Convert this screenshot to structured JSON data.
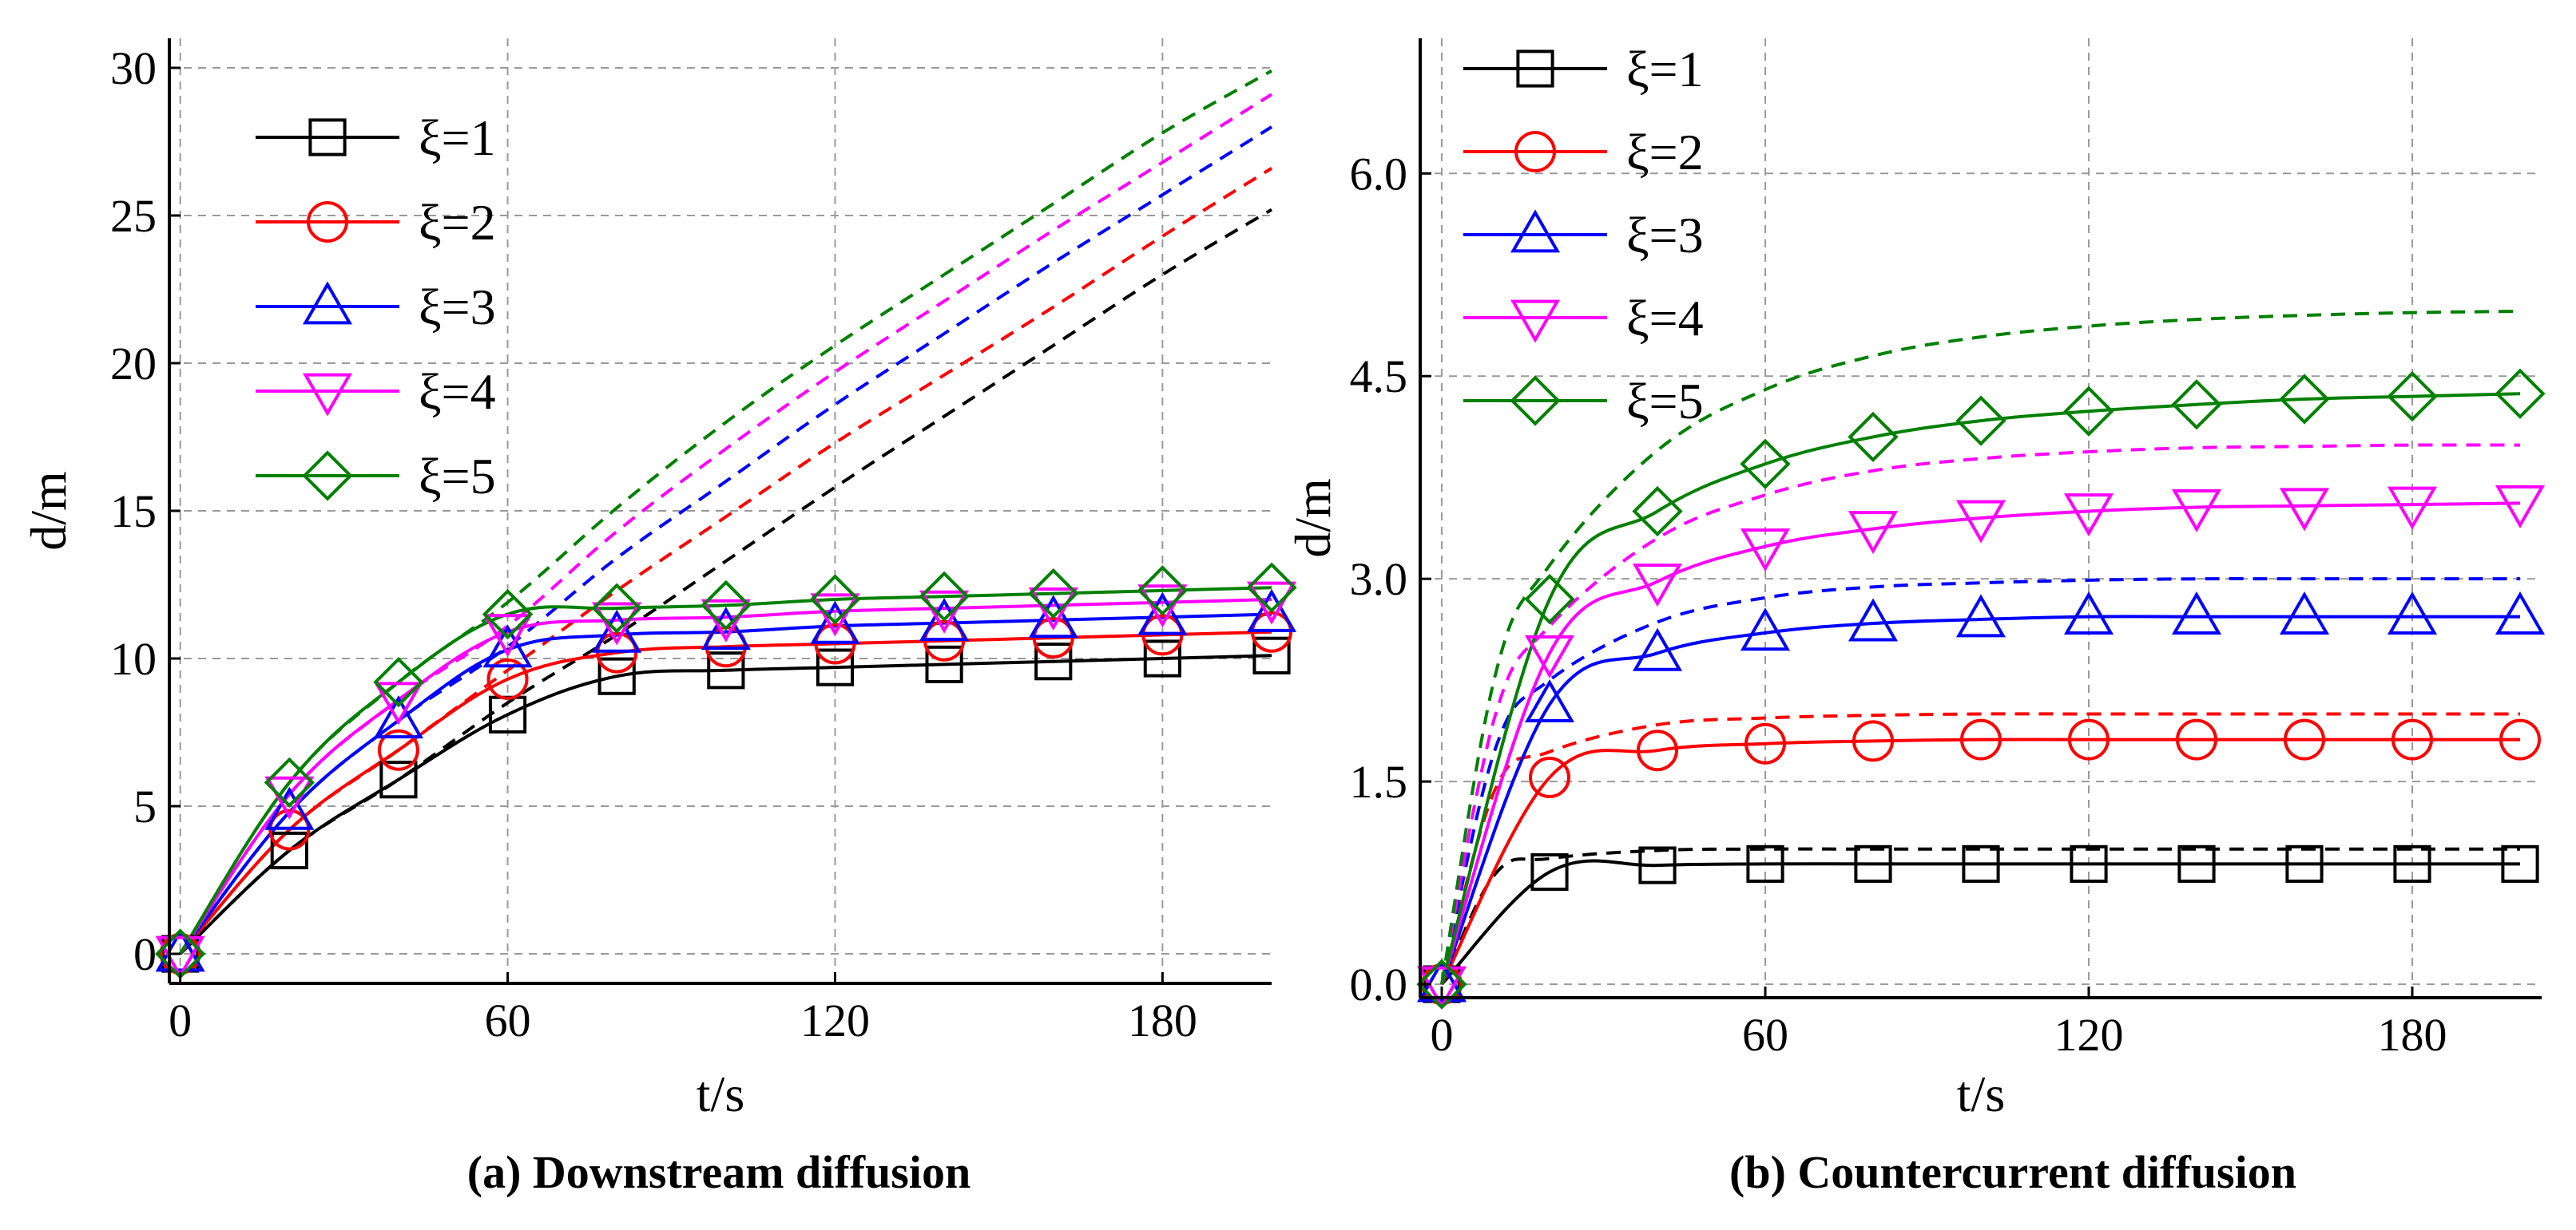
{
  "chart_data": [
    {
      "id": "a",
      "type": "line",
      "title": "(a) Downstream diffusion",
      "xlabel": "t/s",
      "ylabel": "d/m",
      "xlim": [
        -2,
        200
      ],
      "ylim": [
        -1,
        31
      ],
      "xticks": [
        0,
        60,
        120,
        180
      ],
      "yticks": [
        0,
        5,
        10,
        15,
        20,
        25,
        30
      ],
      "xtick_labels": [
        "0",
        "60",
        "120",
        "180"
      ],
      "ytick_labels": [
        "0",
        "5",
        "10",
        "15",
        "20",
        "25",
        "30"
      ],
      "grid": true,
      "legend_position": "top-left",
      "series": [
        {
          "name": "ξ=1",
          "color": "#000000",
          "marker": "square",
          "x": [
            0,
            20,
            40,
            60,
            80,
            100,
            120,
            140,
            160,
            180,
            200
          ],
          "solid": [
            0,
            3.5,
            5.9,
            8.1,
            9.4,
            9.6,
            9.7,
            9.8,
            9.9,
            10.0,
            10.1
          ],
          "dashed_x": [
            0,
            20,
            40,
            60,
            80,
            100,
            120,
            140,
            160,
            180,
            200
          ],
          "dashed": [
            0,
            3.5,
            5.9,
            8.5,
            10.8,
            13.3,
            15.8,
            18.2,
            20.6,
            23.0,
            25.2
          ]
        },
        {
          "name": "ξ=2",
          "color": "#ff0000",
          "marker": "circle",
          "x": [
            0,
            20,
            40,
            60,
            80,
            100,
            120,
            140,
            160,
            180,
            200
          ],
          "solid": [
            0,
            4.2,
            6.9,
            9.3,
            10.2,
            10.4,
            10.5,
            10.6,
            10.7,
            10.8,
            10.9
          ],
          "dashed_x": [
            0,
            20,
            40,
            60,
            80,
            100,
            120,
            140,
            160,
            180,
            200
          ],
          "dashed": [
            0,
            4.2,
            6.9,
            9.6,
            12.3,
            14.8,
            17.3,
            19.6,
            21.9,
            24.3,
            26.6
          ]
        },
        {
          "name": "ξ=3",
          "color": "#0000ff",
          "marker": "triangle-up",
          "x": [
            0,
            20,
            40,
            60,
            80,
            100,
            120,
            140,
            160,
            180,
            200
          ],
          "solid": [
            0,
            4.8,
            7.9,
            10.3,
            10.8,
            10.9,
            11.1,
            11.2,
            11.3,
            11.4,
            11.5
          ],
          "dashed_x": [
            0,
            20,
            40,
            60,
            80,
            100,
            120,
            140,
            160,
            180,
            200
          ],
          "dashed": [
            0,
            4.8,
            7.9,
            10.4,
            13.4,
            16.0,
            18.6,
            21.0,
            23.4,
            25.7,
            28.0
          ]
        },
        {
          "name": "ξ=4",
          "color": "#ff00ff",
          "marker": "triangle-down",
          "x": [
            0,
            20,
            40,
            60,
            80,
            100,
            120,
            140,
            160,
            180,
            200
          ],
          "solid": [
            0,
            5.4,
            8.6,
            10.9,
            11.3,
            11.4,
            11.6,
            11.7,
            11.8,
            11.9,
            12.0
          ],
          "dashed_x": [
            0,
            20,
            40,
            60,
            80,
            100,
            120,
            140,
            160,
            180,
            200
          ],
          "dashed": [
            0,
            5.4,
            8.6,
            11.1,
            14.3,
            17.1,
            19.7,
            22.1,
            24.5,
            26.8,
            29.1
          ]
        },
        {
          "name": "ξ=5",
          "color": "#008000",
          "marker": "diamond",
          "x": [
            0,
            20,
            40,
            60,
            80,
            100,
            120,
            140,
            160,
            180,
            200
          ],
          "solid": [
            0,
            5.8,
            9.2,
            11.5,
            11.7,
            11.8,
            12.0,
            12.1,
            12.2,
            12.3,
            12.4
          ],
          "dashed_x": [
            0,
            20,
            40,
            60,
            80,
            100,
            120,
            140,
            160,
            180,
            200
          ],
          "dashed": [
            0,
            5.8,
            9.2,
            11.9,
            15.1,
            18.0,
            20.6,
            23.0,
            25.4,
            27.8,
            29.9
          ]
        }
      ]
    },
    {
      "id": "b",
      "type": "line",
      "title": "(b) Countercurrent diffusion",
      "xlabel": "t/s",
      "ylabel": "d/m",
      "xlim": [
        -4,
        204
      ],
      "ylim": [
        -0.1,
        7.0
      ],
      "xticks": [
        0,
        60,
        120,
        180
      ],
      "yticks": [
        0,
        1.5,
        3.0,
        4.5,
        6.0
      ],
      "xtick_labels": [
        "0",
        "60",
        "120",
        "180"
      ],
      "ytick_labels": [
        "0.0",
        "1.5",
        "3.0",
        "4.5",
        "6.0"
      ],
      "grid": true,
      "legend_position": "top-left",
      "series": [
        {
          "name": "ξ=1",
          "color": "#000000",
          "marker": "square",
          "x": [
            0,
            20,
            40,
            60,
            80,
            100,
            120,
            140,
            160,
            180,
            200
          ],
          "solid": [
            0,
            0.83,
            0.88,
            0.89,
            0.89,
            0.89,
            0.89,
            0.89,
            0.89,
            0.89,
            0.89
          ],
          "dashed_x": [
            0,
            10,
            20,
            40,
            60,
            80,
            100,
            120,
            140,
            160,
            180,
            200
          ],
          "dashed": [
            0,
            0.82,
            0.93,
            0.99,
            1.0,
            1.0,
            1.0,
            1.0,
            1.0,
            1.0,
            1.0,
            1.0
          ]
        },
        {
          "name": "ξ=2",
          "color": "#ff0000",
          "marker": "circle",
          "x": [
            0,
            20,
            40,
            60,
            80,
            100,
            120,
            140,
            160,
            180,
            200
          ],
          "solid": [
            0,
            1.53,
            1.73,
            1.78,
            1.8,
            1.81,
            1.81,
            1.81,
            1.81,
            1.81,
            1.81
          ],
          "dashed_x": [
            0,
            10,
            20,
            40,
            60,
            80,
            100,
            120,
            140,
            160,
            180,
            200
          ],
          "dashed": [
            0,
            1.45,
            1.72,
            1.92,
            1.97,
            1.99,
            2.0,
            2.0,
            2.0,
            2.0,
            2.0,
            2.0
          ]
        },
        {
          "name": "ξ=3",
          "color": "#0000ff",
          "marker": "triangle-up",
          "x": [
            0,
            20,
            40,
            60,
            80,
            100,
            120,
            140,
            160,
            180,
            200
          ],
          "solid": [
            0,
            2.07,
            2.45,
            2.6,
            2.67,
            2.7,
            2.72,
            2.72,
            2.72,
            2.72,
            2.72
          ],
          "dashed_x": [
            0,
            10,
            20,
            40,
            60,
            80,
            100,
            120,
            140,
            160,
            180,
            200
          ],
          "dashed": [
            0,
            1.75,
            2.25,
            2.68,
            2.86,
            2.94,
            2.97,
            2.99,
            3.0,
            3.0,
            3.0,
            3.0
          ]
        },
        {
          "name": "ξ=4",
          "color": "#ff00ff",
          "marker": "triangle-down",
          "x": [
            0,
            20,
            40,
            60,
            80,
            100,
            120,
            140,
            160,
            180,
            200
          ],
          "solid": [
            0,
            2.45,
            2.98,
            3.24,
            3.37,
            3.45,
            3.5,
            3.53,
            3.54,
            3.55,
            3.56
          ],
          "dashed_x": [
            0,
            10,
            20,
            40,
            60,
            80,
            100,
            120,
            140,
            160,
            180,
            200
          ],
          "dashed": [
            0,
            2.0,
            2.65,
            3.3,
            3.62,
            3.8,
            3.89,
            3.94,
            3.97,
            3.98,
            3.99,
            3.99
          ]
        },
        {
          "name": "ξ=5",
          "color": "#008000",
          "marker": "diamond",
          "x": [
            0,
            20,
            40,
            60,
            80,
            100,
            120,
            140,
            160,
            180,
            200
          ],
          "solid": [
            0,
            2.85,
            3.5,
            3.85,
            4.05,
            4.17,
            4.24,
            4.29,
            4.33,
            4.35,
            4.37
          ],
          "dashed_x": [
            0,
            10,
            20,
            40,
            60,
            80,
            100,
            120,
            140,
            160,
            180,
            200
          ],
          "dashed": [
            0,
            2.3,
            3.1,
            3.95,
            4.4,
            4.65,
            4.79,
            4.87,
            4.92,
            4.95,
            4.97,
            4.98
          ]
        }
      ]
    }
  ]
}
